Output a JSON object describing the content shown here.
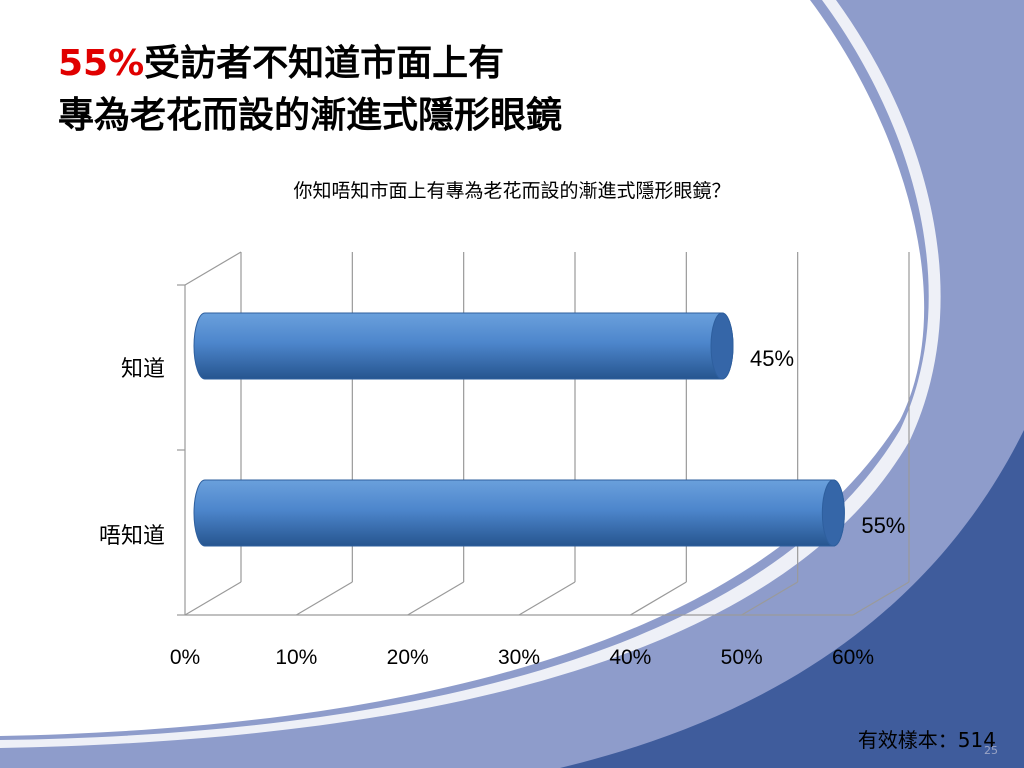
{
  "slide": {
    "title_highlight": "55%",
    "title_line1_rest": "受訪者不知道市面上有",
    "title_line2": "專為老花而設的漸進式隱形眼鏡",
    "sample_label": "有效樣本：514",
    "page_number": "25"
  },
  "colors": {
    "accent_red": "#e00000",
    "bar_light": "#6aa0dc",
    "bar_mid": "#3d73b8",
    "bar_dark": "#26558f",
    "bg_swoosh_light": "#8e9ccb",
    "bg_swoosh_dark": "#3f5c9c"
  },
  "chart_data": {
    "type": "bar",
    "orientation": "horizontal",
    "title": "你知唔知市面上有專為老花而設的漸進式隱形眼鏡？",
    "categories": [
      "知道",
      "唔知道"
    ],
    "values": [
      45,
      55
    ],
    "data_labels": [
      "45%",
      "55%"
    ],
    "x_ticks": [
      "0%",
      "10%",
      "20%",
      "30%",
      "40%",
      "50%",
      "60%"
    ],
    "xlim": [
      0,
      60
    ],
    "grid": true,
    "legend": "none"
  }
}
